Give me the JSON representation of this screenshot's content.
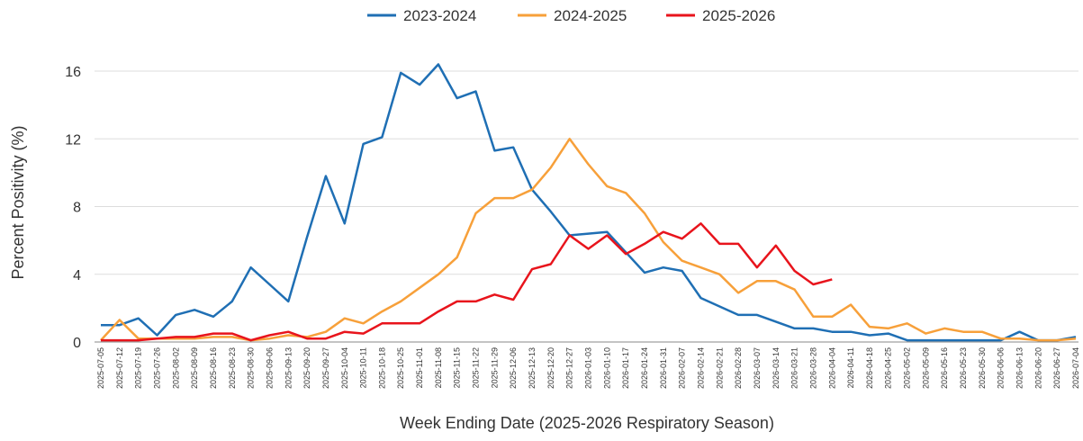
{
  "chart_data": {
    "type": "line",
    "x_label": "Week Ending Date (2025-2026 Respiratory Season)",
    "y_label": "Percent Positivity (%)",
    "categories": [
      "2025-07-05",
      "2025-07-12",
      "2025-07-19",
      "2025-07-26",
      "2025-08-02",
      "2025-08-09",
      "2025-08-16",
      "2025-08-23",
      "2025-08-30",
      "2025-09-06",
      "2025-09-13",
      "2025-09-20",
      "2025-09-27",
      "2025-10-04",
      "2025-10-11",
      "2025-10-18",
      "2025-10-25",
      "2025-11-01",
      "2025-11-08",
      "2025-11-15",
      "2025-11-22",
      "2025-11-29",
      "2025-12-06",
      "2025-12-13",
      "2025-12-20",
      "2025-12-27",
      "2026-01-03",
      "2026-01-10",
      "2026-01-17",
      "2026-01-24",
      "2026-01-31",
      "2026-02-07",
      "2026-02-14",
      "2026-02-21",
      "2026-02-28",
      "2026-03-07",
      "2026-03-14",
      "2026-03-21",
      "2026-03-28",
      "2026-04-04",
      "2026-04-11",
      "2026-04-18",
      "2026-04-25",
      "2026-05-02",
      "2026-05-09",
      "2026-05-16",
      "2026-05-23",
      "2026-05-30",
      "2026-06-06",
      "2026-06-13",
      "2026-06-20",
      "2026-06-27",
      "2026-07-04"
    ],
    "series": [
      {
        "name": "2023-2024",
        "color": "#1f6fb4",
        "values": [
          1.0,
          1.0,
          1.4,
          0.4,
          1.6,
          1.9,
          1.5,
          2.4,
          4.4,
          3.4,
          2.4,
          6.2,
          9.8,
          7.0,
          11.7,
          12.1,
          15.9,
          15.2,
          16.4,
          14.4,
          14.8,
          11.3,
          11.5,
          9.0,
          7.7,
          6.3,
          6.4,
          6.5,
          5.3,
          4.1,
          4.4,
          4.2,
          2.6,
          2.1,
          1.6,
          1.6,
          1.2,
          0.8,
          0.8,
          0.6,
          0.6,
          0.4,
          0.5,
          0.1,
          0.1,
          0.1,
          0.1,
          0.1,
          0.1,
          0.6,
          0.1,
          0.1,
          0.3
        ]
      },
      {
        "name": "2024-2025",
        "color": "#f7a03a",
        "values": [
          0.1,
          1.3,
          0.2,
          0.2,
          0.2,
          0.2,
          0.3,
          0.3,
          0.1,
          0.2,
          0.4,
          0.3,
          0.6,
          1.4,
          1.1,
          1.8,
          2.4,
          3.2,
          4.0,
          5.0,
          7.6,
          8.5,
          8.5,
          9.0,
          10.3,
          12.0,
          10.5,
          9.2,
          8.8,
          7.6,
          5.9,
          4.8,
          4.4,
          4.0,
          2.9,
          3.6,
          3.6,
          3.1,
          1.5,
          1.5,
          2.2,
          0.9,
          0.8,
          1.1,
          0.5,
          0.8,
          0.6,
          0.6,
          0.2,
          0.2,
          0.1,
          0.1,
          0.2
        ]
      },
      {
        "name": "2025-2026",
        "color": "#e8141c",
        "values": [
          0.1,
          0.1,
          0.1,
          0.2,
          0.3,
          0.3,
          0.5,
          0.5,
          0.1,
          0.4,
          0.6,
          0.2,
          0.2,
          0.6,
          0.5,
          1.1,
          1.1,
          1.1,
          1.8,
          2.4,
          2.4,
          2.8,
          2.5,
          4.3,
          4.6,
          6.3,
          5.5,
          6.3,
          5.2,
          5.8,
          6.5,
          6.1,
          7.0,
          5.8,
          5.8,
          4.4,
          5.7,
          4.2,
          3.4,
          3.7,
          null,
          null,
          null,
          null,
          null,
          null,
          null,
          null,
          null,
          null,
          null,
          null,
          null
        ]
      }
    ],
    "ylim": [
      0,
      16
    ],
    "yticks": [
      0,
      4,
      8,
      12,
      16
    ],
    "grid": true,
    "legend": "top"
  }
}
